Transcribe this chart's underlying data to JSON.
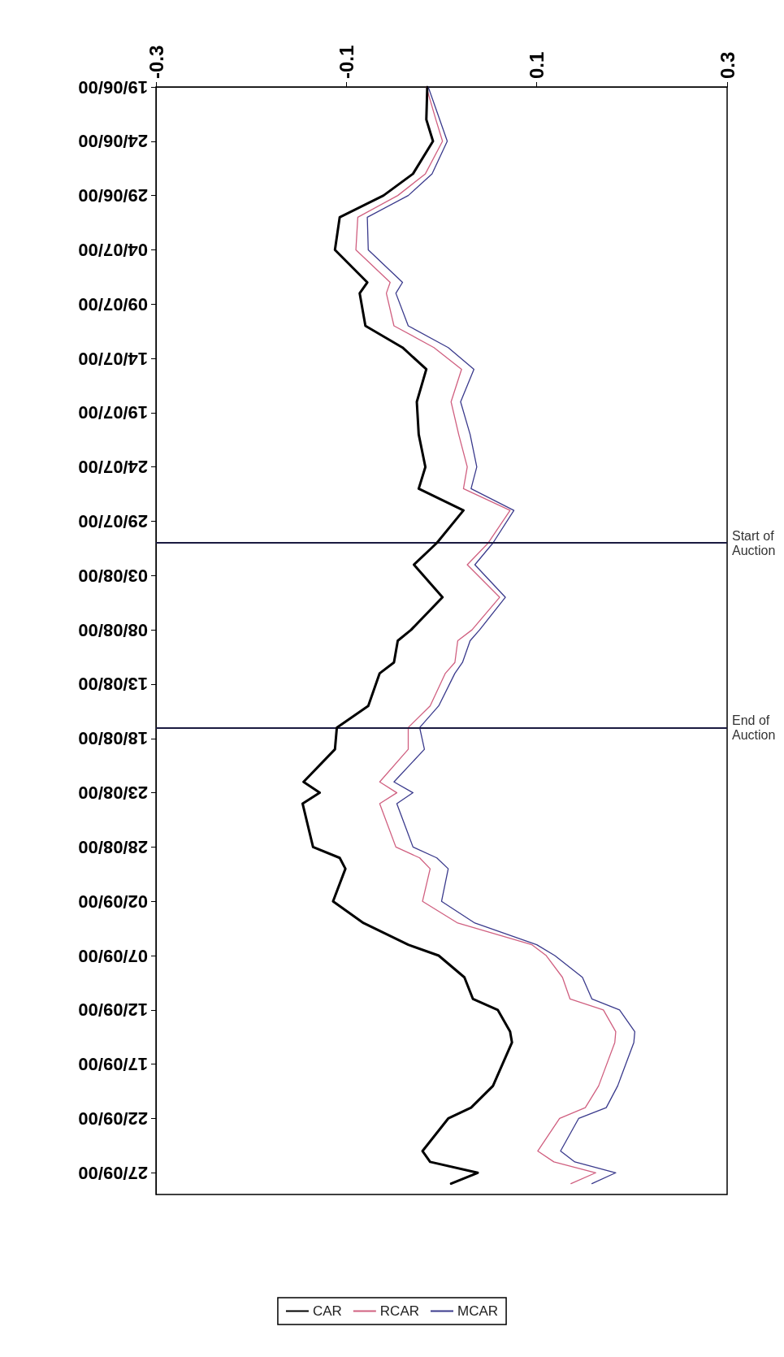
{
  "chart_data": {
    "type": "line",
    "orientation": "horizontal",
    "x": [
      "2000-06-19",
      "2000-06-22",
      "2000-06-24",
      "2000-06-27",
      "2000-06-29",
      "2000-07-01",
      "2000-07-04",
      "2000-07-07",
      "2000-07-08",
      "2000-07-11",
      "2000-07-13",
      "2000-07-15",
      "2000-07-18",
      "2000-07-21",
      "2000-07-24",
      "2000-07-26",
      "2000-07-28",
      "2000-07-31",
      "2000-08-02",
      "2000-08-05",
      "2000-08-08",
      "2000-08-09",
      "2000-08-11",
      "2000-08-12",
      "2000-08-15",
      "2000-08-17",
      "2000-08-19",
      "2000-08-22",
      "2000-08-23",
      "2000-08-24",
      "2000-08-28",
      "2000-08-29",
      "2000-08-30",
      "2000-09-02",
      "2000-09-04",
      "2000-09-06",
      "2000-09-07",
      "2000-09-09",
      "2000-09-11",
      "2000-09-12",
      "2000-09-14",
      "2000-09-15",
      "2000-09-19",
      "2000-09-21",
      "2000-09-22",
      "2000-09-25",
      "2000-09-26",
      "2000-09-27",
      "2000-09-28"
    ],
    "series": [
      {
        "name": "MCAR",
        "color": "#3a3a8c",
        "values": [
          -0.014,
          -0.002,
          0.006,
          -0.01,
          -0.035,
          -0.078,
          -0.077,
          -0.041,
          -0.048,
          -0.035,
          0.007,
          0.034,
          0.02,
          0.03,
          0.037,
          0.031,
          0.076,
          0.054,
          0.035,
          0.067,
          0.04,
          0.03,
          0.022,
          0.014,
          -0.003,
          -0.023,
          -0.018,
          -0.05,
          -0.03,
          -0.047,
          -0.03,
          -0.005,
          0.007,
          0.0,
          0.035,
          0.1,
          0.119,
          0.148,
          0.158,
          0.187,
          0.203,
          0.202,
          0.185,
          0.173,
          0.144,
          0.125,
          0.14,
          0.183,
          0.158
        ]
      },
      {
        "name": "RCAR",
        "color": "#d06080",
        "values": [
          -0.016,
          -0.006,
          0.001,
          -0.017,
          -0.046,
          -0.088,
          -0.09,
          -0.054,
          -0.058,
          -0.05,
          -0.008,
          0.021,
          0.01,
          0.018,
          0.027,
          0.023,
          0.072,
          0.049,
          0.027,
          0.061,
          0.032,
          0.017,
          0.014,
          0.004,
          -0.012,
          -0.035,
          -0.035,
          -0.065,
          -0.047,
          -0.065,
          -0.048,
          -0.023,
          -0.012,
          -0.02,
          0.017,
          0.095,
          0.11,
          0.127,
          0.135,
          0.17,
          0.183,
          0.182,
          0.165,
          0.151,
          0.124,
          0.101,
          0.118,
          0.162,
          0.136
        ]
      },
      {
        "name": "CAR",
        "color": "#000000",
        "values": [
          -0.015,
          -0.016,
          -0.009,
          -0.03,
          -0.061,
          -0.107,
          -0.112,
          -0.078,
          -0.086,
          -0.08,
          -0.041,
          -0.016,
          -0.026,
          -0.024,
          -0.017,
          -0.024,
          0.023,
          -0.005,
          -0.029,
          0.001,
          -0.032,
          -0.046,
          -0.05,
          -0.065,
          -0.077,
          -0.11,
          -0.112,
          -0.145,
          -0.128,
          -0.146,
          -0.135,
          -0.107,
          -0.101,
          -0.114,
          -0.082,
          -0.035,
          -0.003,
          0.024,
          0.033,
          0.059,
          0.072,
          0.074,
          0.054,
          0.031,
          0.007,
          -0.02,
          -0.012,
          0.038,
          0.01
        ]
      }
    ],
    "xlim": [
      -0.3,
      0.3
    ],
    "xticks": [
      -0.3,
      -0.1,
      0.1,
      0.3
    ],
    "ylim": [
      "2000-09-29",
      "2000-06-19"
    ],
    "yticks": [
      {
        "value": "2000-06-19",
        "label": "19/06/00"
      },
      {
        "value": "2000-06-24",
        "label": "24/06/00"
      },
      {
        "value": "2000-06-29",
        "label": "29/06/00"
      },
      {
        "value": "2000-07-04",
        "label": "04/07/00"
      },
      {
        "value": "2000-07-09",
        "label": "09/07/00"
      },
      {
        "value": "2000-07-14",
        "label": "14/07/00"
      },
      {
        "value": "2000-07-19",
        "label": "19/07/00"
      },
      {
        "value": "2000-07-24",
        "label": "24/07/00"
      },
      {
        "value": "2000-07-29",
        "label": "29/07/00"
      },
      {
        "value": "2000-08-03",
        "label": "03/08/00"
      },
      {
        "value": "2000-08-08",
        "label": "08/08/00"
      },
      {
        "value": "2000-08-13",
        "label": "13/08/00"
      },
      {
        "value": "2000-08-18",
        "label": "18/08/00"
      },
      {
        "value": "2000-08-23",
        "label": "23/08/00"
      },
      {
        "value": "2000-08-28",
        "label": "28/08/00"
      },
      {
        "value": "2000-09-02",
        "label": "02/09/00"
      },
      {
        "value": "2000-09-07",
        "label": "07/09/00"
      },
      {
        "value": "2000-09-12",
        "label": "12/09/00"
      },
      {
        "value": "2000-09-17",
        "label": "17/09/00"
      },
      {
        "value": "2000-09-22",
        "label": "22/09/00"
      },
      {
        "value": "2000-09-27",
        "label": "27/09/00"
      }
    ],
    "ref_lines": [
      {
        "axis": "y",
        "value": "2000-07-31",
        "label": "Start of Auction",
        "color": "#1a1a40"
      },
      {
        "axis": "y",
        "value": "2000-08-17",
        "label": "End of Auction",
        "color": "#1a1a40"
      }
    ],
    "grid": false,
    "legend": "bottom",
    "marker": "none",
    "line_style": "solid"
  }
}
